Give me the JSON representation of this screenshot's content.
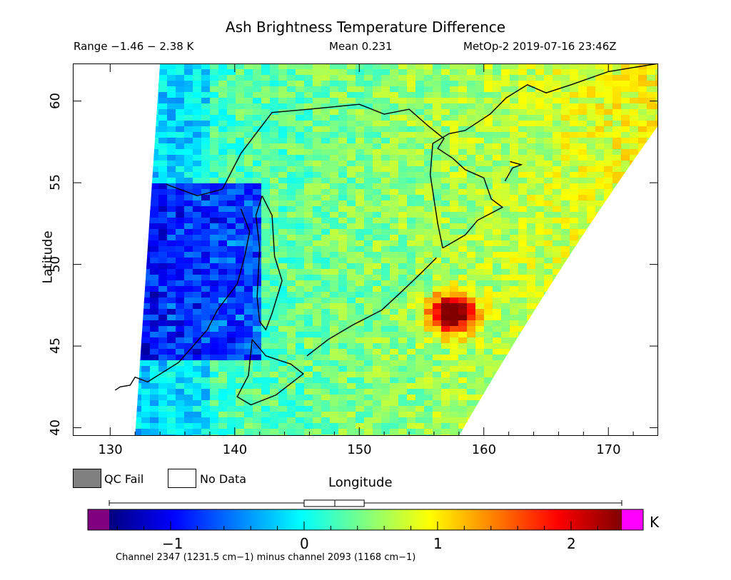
{
  "header": {
    "title": "Ash Brightness Temperature Difference",
    "range": "Range −1.46 − 2.38 K",
    "mean": "Mean 0.231",
    "satellite": "MetOp-2 2019-07-16 23:46Z"
  },
  "map": {
    "x_label": "Longitude",
    "y_label": "Latitude",
    "lon_range": [
      127,
      174
    ],
    "lat_range": [
      39.5,
      62.3
    ],
    "lon_ticks": [
      "130",
      "140",
      "150",
      "160",
      "170"
    ],
    "lat_ticks": [
      "40",
      "45",
      "50",
      "55",
      "60"
    ],
    "hotspot": {
      "lon": 157.5,
      "lat": 47,
      "value": 2.2
    },
    "swath_left_edge": [
      [
        132,
        39.5
      ],
      [
        134,
        62.3
      ]
    ],
    "swath_right_edge": [
      [
        158,
        39.5
      ],
      [
        174,
        58.5
      ]
    ]
  },
  "legend": {
    "qc_fail_label": "QC Fail",
    "no_data_label": "No Data",
    "qc_fail_color": "#808080",
    "no_data_color": "#ffffff"
  },
  "colorbar": {
    "range": [
      -1.46,
      2.38
    ],
    "tick_labels": [
      "−1",
      "0",
      "1",
      "2"
    ],
    "tick_values": [
      -1,
      0,
      1,
      2
    ],
    "unit": "K",
    "underflow_color": "#800080",
    "overflow_color": "#ff00ff",
    "colors": [
      "#000080",
      "#0000ff",
      "#0080ff",
      "#00ffff",
      "#80ff80",
      "#ffff00",
      "#ff8000",
      "#ff0000",
      "#800000"
    ],
    "box_stats": {
      "min": -1.46,
      "q1": 0.0,
      "median": 0.23,
      "q3": 0.45,
      "max": 2.38
    }
  },
  "footnote": "Channel 2347 (1231.5 cm−1) minus channel 2093 (1168 cm−1)"
}
